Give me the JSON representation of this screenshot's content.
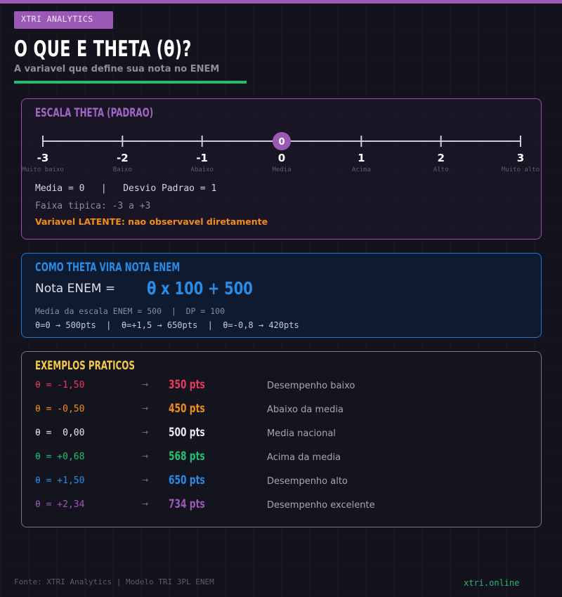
{
  "brand": "XTRI ANALYTICS",
  "title": "O QUE E THETA (θ)?",
  "subtitle": "A variavel que define sua nota no ENEM",
  "colors": {
    "accent_purple": "#9b59b6",
    "accent_green": "#1fbf72",
    "accent_blue": "#2a8be6",
    "accent_yellow": "#f2c94c",
    "accent_orange": "#f08c1c"
  },
  "scale": {
    "heading": "ESCALA THETA (PADRAO)",
    "ticks": [
      {
        "value": "-3",
        "label": "Muito baixo"
      },
      {
        "value": "-2",
        "label": "Baixo"
      },
      {
        "value": "-1",
        "label": "Abaixo"
      },
      {
        "value": "0",
        "label": "Media"
      },
      {
        "value": "1",
        "label": "Acima"
      },
      {
        "value": "2",
        "label": "Alto"
      },
      {
        "value": "3",
        "label": "Muito alto"
      }
    ],
    "marker_value": "0",
    "stats_line": "Media = 0   |   Desvio Padrao = 1",
    "range_line": "Faixa tipica: -3 a +3",
    "latent_line": "Variavel LATENTE: nao observavel diretamente"
  },
  "formula": {
    "heading": "COMO THETA VIRA NOTA ENEM",
    "label": "Nota ENEM =",
    "expression": "θ x 100 + 500",
    "note": "Media da escala ENEM = 500  |  DP = 100",
    "examples": "θ=0 → 500pts  |  θ=+1,5 → 650pts  |  θ=-0,8 → 420pts"
  },
  "examples": {
    "heading": "EXEMPLOS PRATICOS",
    "arrow": "→",
    "rows": [
      {
        "theta": "θ = -1,50",
        "points": "350 pts",
        "desc": "Desempenho baixo",
        "color": "#e83a5c"
      },
      {
        "theta": "θ = -0,50",
        "points": "450 pts",
        "desc": "Abaixo da media",
        "color": "#f08c1c"
      },
      {
        "theta": "θ =  0,00",
        "points": "500 pts",
        "desc": "Media nacional",
        "color": "#e8e6f0"
      },
      {
        "theta": "θ = +0,68",
        "points": "568 pts",
        "desc": "Acima da media",
        "color": "#1fbf72"
      },
      {
        "theta": "θ = +1,50",
        "points": "650 pts",
        "desc": "Desempenho alto",
        "color": "#2a8be6"
      },
      {
        "theta": "θ = +2,34",
        "points": "734 pts",
        "desc": "Desempenho excelente",
        "color": "#9b59b6"
      }
    ]
  },
  "footer": {
    "source": "Fonte: XTRI Analytics | Modelo TRI 3PL ENEM",
    "site": "xtri.online"
  }
}
